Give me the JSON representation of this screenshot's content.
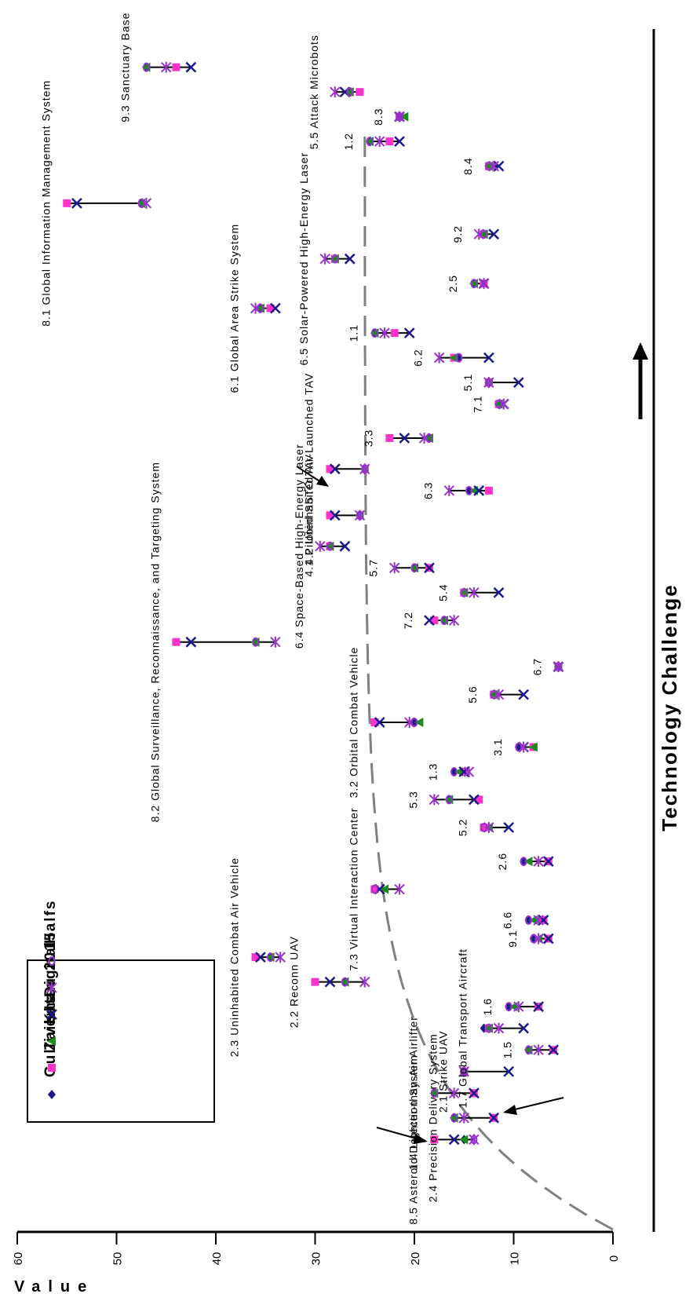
{
  "chart_data": {
    "type": "scatter",
    "ylabel": "Value",
    "xlabel": "Technology Challenge",
    "ylim": [
      0,
      60
    ],
    "yticks": [
      "0",
      "10",
      "20",
      "30",
      "40",
      "50",
      "60"
    ],
    "series": [
      {
        "name": "Gulliver's",
        "color": "#1a1a8c",
        "marker": "diamond"
      },
      {
        "name": "Zaibatsu",
        "color": "#ff33cc",
        "marker": "square"
      },
      {
        "name": "Khan",
        "color": "#1a8c1a",
        "marker": "triangle"
      },
      {
        "name": "Digital",
        "color": "#1a1a8c",
        "marker": "x"
      },
      {
        "name": "2015",
        "color": "#9933cc",
        "marker": "star"
      },
      {
        "name": "Halfs",
        "color": "#9933cc",
        "marker": "circle"
      }
    ],
    "systems": [
      {
        "id": "8.5",
        "label": "8.5  Asteroid Detection System",
        "x": 0.5,
        "values": {
          "Gulliver's": 15,
          "Zaibatsu": 18,
          "Khan": 15,
          "Digital": 16,
          "2015": 14,
          "Halfs": 14
        }
      },
      {
        "id": "2.4",
        "label": "2.4  Precision Delivery System",
        "x": 1.2,
        "values": {
          "Gulliver's": 16,
          "Zaibatsu": 12,
          "Khan": 16,
          "Digital": 12,
          "2015": 15,
          "Halfs": 16
        }
      },
      {
        "id": "1.4",
        "label": "1.4  Lighter-than-Air Airlifter",
        "x": 2.0,
        "values": {
          "Gulliver's": 18,
          "Zaibatsu": 14,
          "Khan": 18,
          "Digital": 14,
          "2015": 16,
          "Halfs": 18
        }
      },
      {
        "id": "2.1",
        "label": "2.1  Strike UAV",
        "x": 2.7,
        "values": {
          "Gulliver's": 15,
          "Zaibatsu": 15,
          "Khan": 15,
          "Digital": 10.5,
          "2015": 15,
          "Halfs": 15
        }
      },
      {
        "id": "1.5",
        "label": "1.5",
        "x": 3.4,
        "values": {
          "Gulliver's": 8.5,
          "Zaibatsu": 6,
          "Khan": 8.5,
          "Digital": 6,
          "2015": 7.5,
          "Halfs": 8.5
        }
      },
      {
        "id": "1.7",
        "label": "1.7  Global Transport Aircraft",
        "x": 4.1,
        "values": {
          "Gulliver's": 13,
          "Zaibatsu": 12.5,
          "Khan": 12.5,
          "Digital": 9,
          "2015": 11.5,
          "Halfs": 12.5
        }
      },
      {
        "id": "1.6",
        "label": "1.6",
        "x": 4.8,
        "values": {
          "Gulliver's": 10.5,
          "Zaibatsu": 7.5,
          "Khan": 10,
          "Digital": 7.5,
          "2015": 9.5,
          "Halfs": 10.5
        }
      },
      {
        "id": "2.2",
        "label": "2.2  Reconn UAV",
        "x": 5.6,
        "values": {
          "Gulliver's": 27,
          "Zaibatsu": 30,
          "Khan": 27,
          "Digital": 28.5,
          "2015": 25,
          "Halfs": 27
        }
      },
      {
        "id": "2.3",
        "label": "2.3  Uninhabited Combat Air Vehicle",
        "x": 6.4,
        "values": {
          "Gulliver's": 34.5,
          "Zaibatsu": 36,
          "Khan": 34.5,
          "Digital": 35.5,
          "2015": 33.5,
          "Halfs": 34.5
        }
      },
      {
        "id": "9.1",
        "label": "9.1",
        "x": 7.0,
        "values": {
          "Gulliver's": 8,
          "Zaibatsu": 6.5,
          "Khan": 7.5,
          "Digital": 6.5,
          "2015": 7.5,
          "Halfs": 8
        }
      },
      {
        "id": "6.6",
        "label": "6.6",
        "x": 7.6,
        "values": {
          "Gulliver's": 8.5,
          "Zaibatsu": 7,
          "Khan": 8,
          "Digital": 7,
          "2015": 7.5,
          "Halfs": 8.5
        }
      },
      {
        "id": "7.3",
        "label": "7.3  Virtual Interaction Center",
        "x": 8.6,
        "values": {
          "Gulliver's": 24,
          "Zaibatsu": 24,
          "Khan": 23,
          "Digital": 23.5,
          "2015": 21.5,
          "Halfs": 24
        }
      },
      {
        "id": "2.6",
        "label": "2.6",
        "x": 9.5,
        "values": {
          "Gulliver's": 9,
          "Zaibatsu": 6.5,
          "Khan": 8.5,
          "Digital": 6.5,
          "2015": 7.5,
          "Halfs": 9
        }
      },
      {
        "id": "5.2",
        "label": "5.2",
        "x": 10.6,
        "values": {
          "Gulliver's": 13,
          "Zaibatsu": 13,
          "Khan": 12.5,
          "Digital": 10.5,
          "2015": 12.5,
          "Halfs": 13
        }
      },
      {
        "id": "5.3",
        "label": "5.3",
        "x": 11.5,
        "values": {
          "Gulliver's": 16.5,
          "Zaibatsu": 13.5,
          "Khan": 16.5,
          "Digital": 14,
          "2015": 18,
          "Halfs": 16.5
        }
      },
      {
        "id": "1.3",
        "label": "1.3",
        "x": 12.4,
        "values": {
          "Gulliver's": 16,
          "Zaibatsu": 15,
          "Khan": 15.5,
          "Digital": 15,
          "2015": 14.5,
          "Halfs": 16
        }
      },
      {
        "id": "3.1",
        "label": "3.1",
        "x": 13.2,
        "values": {
          "Gulliver's": 9.5,
          "Zaibatsu": 8,
          "Khan": 8,
          "Digital": 9,
          "2015": 9,
          "Halfs": 9.5
        }
      },
      {
        "id": "3.2",
        "label": "3.2  Orbital Combat Vehicle",
        "x": 14.0,
        "values": {
          "Gulliver's": 20,
          "Zaibatsu": 24,
          "Khan": 19.5,
          "Digital": 23.5,
          "2015": 20.5,
          "Halfs": 20
        }
      },
      {
        "id": "5.6",
        "label": "5.6",
        "x": 14.9,
        "values": {
          "Gulliver's": 12,
          "Zaibatsu": 12,
          "Khan": 12,
          "Digital": 9,
          "2015": 11.5,
          "Halfs": 12
        }
      },
      {
        "id": "6.7",
        "label": "6.7",
        "x": 15.8,
        "values": {
          "Gulliver's": 5.5,
          "Zaibatsu": 5.5,
          "Khan": 5.5,
          "Digital": 5.5,
          "2015": 5.5,
          "Halfs": 5.5
        }
      },
      {
        "id": "8.2",
        "label": "8.2  Global Surveillance, Reconnaissance, and Targeting System",
        "x": 16.6,
        "values": {
          "Gulliver's": 36,
          "Zaibatsu": 44,
          "Khan": 36,
          "Digital": 42.5,
          "2015": 34,
          "Halfs": 36
        }
      },
      {
        "id": "7.2",
        "label": "7.2",
        "x": 17.3,
        "values": {
          "Gulliver's": 17,
          "Zaibatsu": 18,
          "Khan": 17,
          "Digital": 18.5,
          "2015": 16,
          "Halfs": 17
        }
      },
      {
        "id": "5.4",
        "label": "5.4",
        "x": 18.2,
        "values": {
          "Gulliver's": 15,
          "Zaibatsu": 15,
          "Khan": 15,
          "Digital": 11.5,
          "2015": 14,
          "Halfs": 15
        }
      },
      {
        "id": "5.7",
        "label": "5.7",
        "x": 19.0,
        "values": {
          "Gulliver's": 20,
          "Zaibatsu": 18.5,
          "Khan": 20,
          "Digital": 18.5,
          "2015": 22,
          "Halfs": 20
        }
      },
      {
        "id": "6.4",
        "label": "6.4  Space-Based High-Energy Laser",
        "x": 19.7,
        "values": {
          "Gulliver's": 28.5,
          "Zaibatsu": 28.5,
          "Khan": 28.5,
          "Digital": 27,
          "2015": 29.5,
          "Halfs": 28.5
        }
      },
      {
        "id": "4.1",
        "label": "4.1  Piloted SSTO TAV",
        "x": 20.7,
        "values": {
          "Gulliver's": 25.5,
          "Zaibatsu": 28.5,
          "Khan": 25.5,
          "Digital": 28,
          "2015": 25.5,
          "Halfs": 25.5
        }
      },
      {
        "id": "6.3",
        "label": "6.3",
        "x": 21.5,
        "values": {
          "Gulliver's": 14.5,
          "Zaibatsu": 12.5,
          "Khan": 14,
          "Digital": 13.5,
          "2015": 16.5,
          "Halfs": 14.5
        }
      },
      {
        "id": "4.2",
        "label": "4.2  Uninhabited Air-Launched TAV",
        "x": 22.2,
        "values": {
          "Gulliver's": 25,
          "Zaibatsu": 28.5,
          "Khan": 25,
          "Digital": 28,
          "2015": 25,
          "Halfs": 25
        }
      },
      {
        "id": "3.3",
        "label": "3.3",
        "x": 23.2,
        "values": {
          "Gulliver's": 18.5,
          "Zaibatsu": 22.5,
          "Khan": 18.5,
          "Digital": 21,
          "2015": 19,
          "Halfs": 18.5
        }
      },
      {
        "id": "7.1",
        "label": "7.1",
        "x": 24.3,
        "values": {
          "Gulliver's": 11.5,
          "Zaibatsu": 11.5,
          "Khan": 11.5,
          "Digital": 11,
          "2015": 11,
          "Halfs": 11.5
        }
      },
      {
        "id": "5.1",
        "label": "5.1",
        "x": 25.0,
        "values": {
          "Gulliver's": 12.5,
          "Zaibatsu": 12.5,
          "Khan": 12.5,
          "Digital": 9.5,
          "2015": 12.5,
          "Halfs": 12.5
        }
      },
      {
        "id": "6.2",
        "label": "6.2",
        "x": 25.8,
        "values": {
          "Gulliver's": 15.5,
          "Zaibatsu": 16,
          "Khan": 16,
          "Digital": 12.5,
          "2015": 17.5,
          "Halfs": 15.5
        }
      },
      {
        "id": "1.1",
        "label": "1.1",
        "x": 26.6,
        "values": {
          "Gulliver's": 24,
          "Zaibatsu": 22,
          "Khan": 24,
          "Digital": 20.5,
          "2015": 23,
          "Halfs": 24
        }
      },
      {
        "id": "6.1",
        "label": "6.1  Global Area Strike System",
        "x": 27.4,
        "values": {
          "Gulliver's": 35.5,
          "Zaibatsu": 34.5,
          "Khan": 35.5,
          "Digital": 34,
          "2015": 36,
          "Halfs": 35.5
        }
      },
      {
        "id": "2.5",
        "label": "2.5",
        "x": 28.2,
        "values": {
          "Gulliver's": 14,
          "Zaibatsu": 13,
          "Khan": 14,
          "Digital": 13,
          "2015": 13,
          "Halfs": 14
        }
      },
      {
        "id": "6.5",
        "label": "6.5  Solar-Powered High-Energy Laser",
        "x": 29.0,
        "values": {
          "Gulliver's": 28,
          "Zaibatsu": 28,
          "Khan": 28,
          "Digital": 26.5,
          "2015": 29,
          "Halfs": 28
        }
      },
      {
        "id": "9.2",
        "label": "9.2",
        "x": 29.8,
        "values": {
          "Gulliver's": 13,
          "Zaibatsu": 13,
          "Khan": 13,
          "Digital": 12,
          "2015": 13.5,
          "Halfs": 13
        }
      },
      {
        "id": "8.1",
        "label": "8.1  Global Information Management System",
        "x": 30.8,
        "values": {
          "Gulliver's": 47.5,
          "Zaibatsu": 55,
          "Khan": 47.5,
          "Digital": 54,
          "2015": 47,
          "Halfs": 47.5
        }
      },
      {
        "id": "8.4",
        "label": "8.4",
        "x": 32.0,
        "values": {
          "Gulliver's": 12.5,
          "Zaibatsu": 12.5,
          "Khan": 12.5,
          "Digital": 11.5,
          "2015": 12,
          "Halfs": 12.5
        }
      },
      {
        "id": "1.2",
        "label": "1.2",
        "x": 32.8,
        "values": {
          "Gulliver's": 24.5,
          "Zaibatsu": 22.5,
          "Khan": 24.5,
          "Digital": 21.5,
          "2015": 23.5,
          "Halfs": 24.5
        }
      },
      {
        "id": "8.3",
        "label": "8.3",
        "x": 33.6,
        "values": {
          "Gulliver's": 21.5,
          "Zaibatsu": 21.5,
          "Khan": 21,
          "Digital": 21.5,
          "2015": 21.5,
          "Halfs": 21.5
        }
      },
      {
        "id": "5.5",
        "label": "5.5  Attack Microbots",
        "x": 34.4,
        "values": {
          "Gulliver's": 26.5,
          "Zaibatsu": 25.5,
          "Khan": 26.5,
          "Digital": 27,
          "2015": 28,
          "Halfs": 26.5
        }
      },
      {
        "id": "9.3",
        "label": "9.3  Sanctuary Base",
        "x": 35.2,
        "values": {
          "Gulliver's": 47,
          "Zaibatsu": 44,
          "Khan": 47,
          "Digital": 42.5,
          "2015": 45,
          "Halfs": 47
        }
      }
    ]
  }
}
